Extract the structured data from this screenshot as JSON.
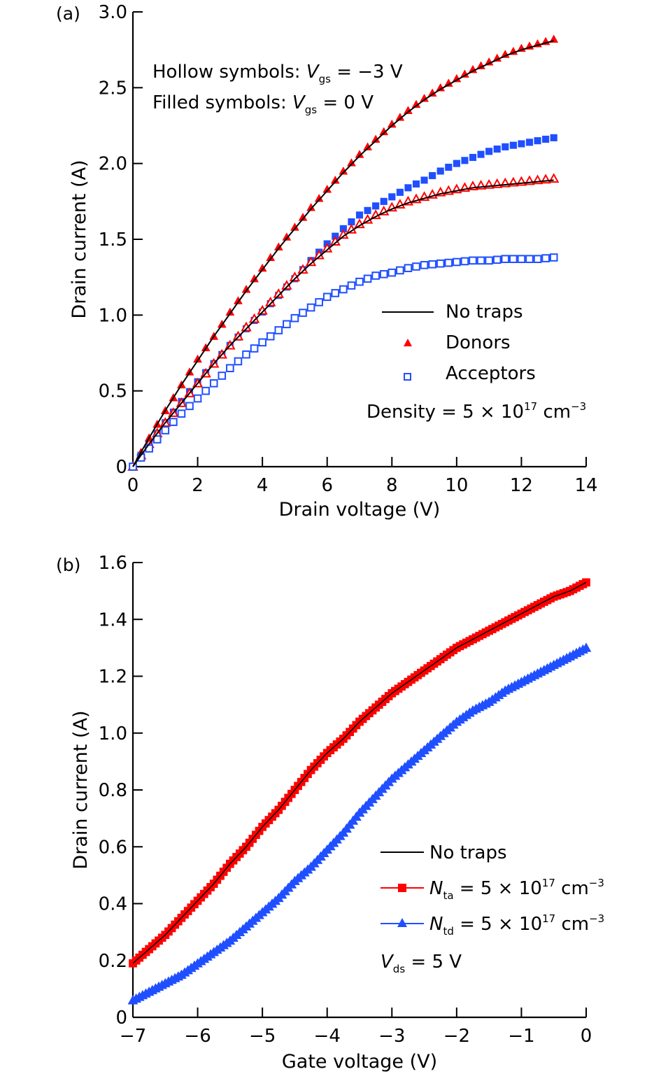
{
  "chart_data": [
    {
      "panel": "(a)",
      "type": "scatter",
      "title": "",
      "xlabel": "Drain voltage (V)",
      "ylabel": "Drain current (A)",
      "xlim": [
        0,
        14
      ],
      "ylim": [
        0,
        3.0
      ],
      "xticks": [
        0,
        2,
        4,
        6,
        8,
        10,
        12,
        14
      ],
      "xtick_labels": [
        "0",
        "2",
        "4",
        "6",
        "8",
        "10",
        "12",
        "14"
      ],
      "yticks": [
        0,
        0.5,
        1.0,
        1.5,
        2.0,
        2.5,
        3.0
      ],
      "ytick_labels": [
        "0",
        "0.5",
        "1.0",
        "1.5",
        "2.0",
        "2.5",
        "3.0"
      ],
      "grid": false,
      "annotations": {
        "hollow_prefix": "Hollow symbols: ",
        "hollow_var": "V",
        "hollow_sub": "gs",
        "hollow_value": " = −3 V",
        "filled_prefix": "Filled symbols: ",
        "filled_var": "V",
        "filled_sub": "gs",
        "filled_value": " = 0 V",
        "density_prefix": "Density = 5 × 10",
        "density_exp": "17",
        "density_unit": " cm",
        "density_unit_exp": "−3"
      },
      "legend": {
        "placement": "bottom-right",
        "entries": [
          {
            "label": "No traps",
            "marker": "line",
            "color": "#000000"
          },
          {
            "label": "Donors",
            "marker": "triangle",
            "color": "#ff0000"
          },
          {
            "label": "Acceptors",
            "marker": "hollow-square",
            "color": "#1f4fff"
          }
        ]
      },
      "x": [
        0,
        0.5,
        1,
        1.5,
        2,
        2.5,
        3,
        3.5,
        4,
        4.5,
        5,
        5.5,
        6,
        6.5,
        7,
        7.5,
        8,
        8.5,
        9,
        9.5,
        10,
        10.5,
        11,
        11.5,
        12,
        12.5,
        13
      ],
      "series": [
        {
          "name": "No traps (Vgs = 0 V)",
          "style": "line",
          "color": "#000000",
          "values": [
            0,
            0.19,
            0.37,
            0.54,
            0.7,
            0.86,
            1.01,
            1.16,
            1.3,
            1.44,
            1.57,
            1.7,
            1.82,
            1.94,
            2.05,
            2.15,
            2.25,
            2.34,
            2.42,
            2.49,
            2.55,
            2.61,
            2.66,
            2.71,
            2.75,
            2.78,
            2.81
          ]
        },
        {
          "name": "Donors (Vgs = 0 V)",
          "style": "filled-triangle",
          "color": "#ff0000",
          "values": [
            0,
            0.19,
            0.37,
            0.54,
            0.71,
            0.86,
            1.02,
            1.17,
            1.31,
            1.45,
            1.58,
            1.71,
            1.83,
            1.95,
            2.06,
            2.16,
            2.26,
            2.35,
            2.43,
            2.5,
            2.56,
            2.62,
            2.67,
            2.72,
            2.76,
            2.79,
            2.82
          ]
        },
        {
          "name": "Acceptors (Vgs = 0 V)",
          "style": "filled-square",
          "color": "#1f4fff",
          "values": [
            0,
            0.15,
            0.29,
            0.43,
            0.56,
            0.68,
            0.8,
            0.91,
            1.02,
            1.13,
            1.24,
            1.36,
            1.47,
            1.57,
            1.66,
            1.72,
            1.78,
            1.84,
            1.89,
            1.95,
            2.0,
            2.04,
            2.08,
            2.11,
            2.13,
            2.15,
            2.17
          ]
        },
        {
          "name": "No traps (Vgs = −3 V)",
          "style": "line",
          "color": "#000000",
          "values": [
            0,
            0.15,
            0.29,
            0.42,
            0.55,
            0.68,
            0.8,
            0.91,
            1.02,
            1.13,
            1.24,
            1.34,
            1.43,
            1.52,
            1.59,
            1.65,
            1.7,
            1.74,
            1.77,
            1.8,
            1.82,
            1.84,
            1.85,
            1.86,
            1.87,
            1.88,
            1.89
          ]
        },
        {
          "name": "Donors (Vgs = −3 V)",
          "style": "hollow-triangle",
          "color": "#ff0000",
          "values": [
            0,
            0.15,
            0.29,
            0.42,
            0.55,
            0.68,
            0.8,
            0.92,
            1.03,
            1.14,
            1.25,
            1.35,
            1.44,
            1.53,
            1.6,
            1.66,
            1.71,
            1.75,
            1.78,
            1.81,
            1.83,
            1.85,
            1.86,
            1.87,
            1.88,
            1.89,
            1.9
          ]
        },
        {
          "name": "Acceptors (Vgs = −3 V)",
          "style": "hollow-square",
          "color": "#1f4fff",
          "values": [
            0,
            0.12,
            0.24,
            0.35,
            0.45,
            0.55,
            0.65,
            0.74,
            0.82,
            0.9,
            0.98,
            1.05,
            1.12,
            1.17,
            1.22,
            1.26,
            1.28,
            1.31,
            1.33,
            1.34,
            1.35,
            1.36,
            1.36,
            1.37,
            1.37,
            1.37,
            1.38
          ]
        }
      ]
    },
    {
      "panel": "(b)",
      "type": "line",
      "title": "",
      "xlabel": "Gate voltage (V)",
      "ylabel": "Drain current (A)",
      "xlim": [
        -7,
        0
      ],
      "ylim": [
        0,
        1.6
      ],
      "xticks": [
        -7,
        -6,
        -5,
        -4,
        -3,
        -2,
        -1,
        0
      ],
      "xtick_labels": [
        "−7",
        "−6",
        "−5",
        "−4",
        "−3",
        "−2",
        "−1",
        "0"
      ],
      "yticks": [
        0,
        0.2,
        0.4,
        0.6,
        0.8,
        1.0,
        1.2,
        1.4,
        1.6
      ],
      "ytick_labels": [
        "0",
        "0.2",
        "0.4",
        "0.6",
        "0.8",
        "1.0",
        "1.2",
        "1.4",
        "1.6"
      ],
      "grid": false,
      "annotations": {
        "vds_var": "V",
        "vds_sub": "ds",
        "vds_value": " = 5 V"
      },
      "legend": {
        "placement": "bottom-right",
        "entries": [
          {
            "label": "No traps",
            "marker": "line",
            "color": "#000000"
          },
          {
            "label_var": "N",
            "label_sub": "ta",
            "label_rest": " = 5 × 10",
            "label_exp": "17",
            "label_unit": " cm",
            "label_unit_exp": "−3",
            "marker": "square-line",
            "color": "#ff0000"
          },
          {
            "label_var": "N",
            "label_sub": "td",
            "label_rest": " = 5 × 10",
            "label_exp": "17",
            "label_unit": " cm",
            "label_unit_exp": "−3",
            "marker": "triangle-line",
            "color": "#1f4fff"
          }
        ]
      },
      "x": [
        -7,
        -6.75,
        -6.5,
        -6.25,
        -6,
        -5.75,
        -5.5,
        -5.25,
        -5,
        -4.75,
        -4.5,
        -4.25,
        -4,
        -3.75,
        -3.5,
        -3.25,
        -3,
        -2.75,
        -2.5,
        -2.25,
        -2,
        -1.75,
        -1.5,
        -1.25,
        -1,
        -0.75,
        -0.5,
        -0.25,
        0
      ],
      "series": [
        {
          "name": "No traps",
          "style": "line",
          "color": "#000000",
          "values": [
            0.19,
            0.24,
            0.29,
            0.35,
            0.41,
            0.47,
            0.54,
            0.6,
            0.67,
            0.73,
            0.8,
            0.87,
            0.93,
            0.98,
            1.04,
            1.09,
            1.14,
            1.18,
            1.22,
            1.26,
            1.3,
            1.33,
            1.36,
            1.39,
            1.42,
            1.45,
            1.48,
            1.5,
            1.53
          ]
        },
        {
          "name": "Nta = 5e17 cm-3",
          "style": "square",
          "color": "#ff0000",
          "values": [
            0.19,
            0.24,
            0.29,
            0.35,
            0.41,
            0.47,
            0.54,
            0.6,
            0.67,
            0.73,
            0.8,
            0.87,
            0.93,
            0.98,
            1.04,
            1.09,
            1.14,
            1.18,
            1.22,
            1.26,
            1.3,
            1.33,
            1.36,
            1.39,
            1.42,
            1.45,
            1.48,
            1.5,
            1.53
          ]
        },
        {
          "name": "Ntd = 5e17 cm-3",
          "style": "triangle",
          "color": "#1f4fff",
          "values": [
            0.06,
            0.09,
            0.12,
            0.15,
            0.19,
            0.23,
            0.27,
            0.32,
            0.37,
            0.42,
            0.48,
            0.53,
            0.59,
            0.65,
            0.72,
            0.78,
            0.84,
            0.89,
            0.94,
            0.99,
            1.04,
            1.08,
            1.11,
            1.15,
            1.18,
            1.21,
            1.24,
            1.27,
            1.3
          ]
        }
      ]
    }
  ]
}
